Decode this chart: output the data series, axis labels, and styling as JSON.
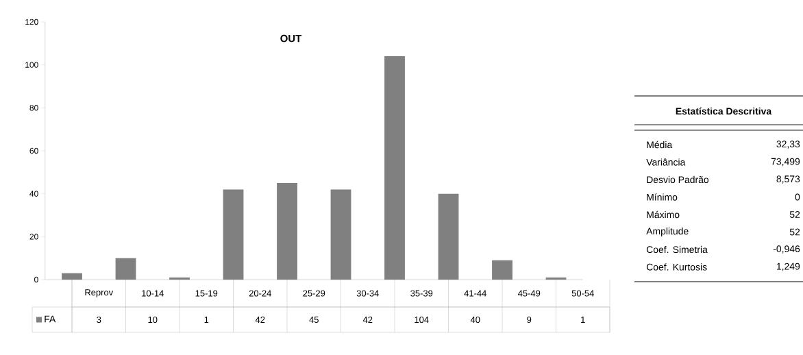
{
  "chart_data": [
    {
      "type": "bar",
      "title": "OUT",
      "categories": [
        "Reprov",
        "10-14",
        "15-19",
        "20-24",
        "25-29",
        "30-34",
        "35-39",
        "41-44",
        "45-49",
        "50-54"
      ],
      "series": [
        {
          "name": "FA",
          "color": "#808080",
          "values": [
            3,
            10,
            1,
            42,
            45,
            42,
            104,
            40,
            9,
            1
          ]
        }
      ],
      "ylim": [
        0,
        120
      ],
      "yticks": [
        0,
        20,
        40,
        60,
        80,
        100,
        120
      ],
      "data_labels": true,
      "legend": "bottom left",
      "grid": false
    },
    {
      "type": "other",
      "title": "Estatística Descritiva",
      "categories": [
        "Média",
        "Variância",
        "Desvio Padrão",
        "Mínimo",
        "Máximo",
        "Amplitude",
        "Coef. Simetria",
        "Coef. Kurtosis"
      ],
      "value_labels": [
        "32,33",
        "73,499",
        "8,573",
        "0",
        "52",
        "52",
        "-0,946",
        "1,249"
      ]
    }
  ]
}
